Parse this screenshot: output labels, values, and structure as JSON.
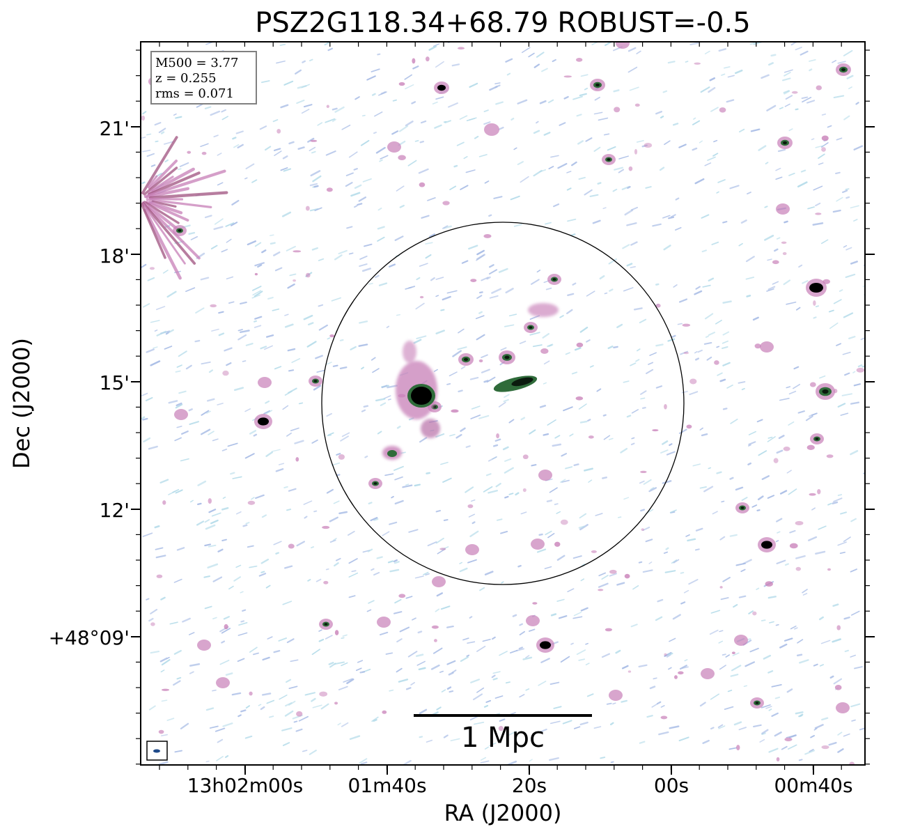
{
  "title": "PSZ2G118.34+68.79 ROBUST=-0.5",
  "info_box": {
    "mass_line": "M500 = 3.77",
    "redshift_line": "z = 0.255",
    "rms_line": "rms = 0.071"
  },
  "x_axis": {
    "label": "RA (J2000)",
    "ticks": [
      "13h02m00s",
      "01m40s",
      "20s",
      "00s",
      "00m40s"
    ]
  },
  "y_axis": {
    "label": "Dec (J2000)",
    "ticks": [
      "21'",
      "18'",
      "15'",
      "12'",
      "+48°09'"
    ]
  },
  "scale_bar": {
    "label": "1 Mpc"
  },
  "colors": {
    "noise_blue": "#a9bde6",
    "noise_cyan": "#b5dcea",
    "emission_pink": "#c87fb8",
    "emission_green": "#2f6b3a",
    "core_black": "#000000"
  }
}
